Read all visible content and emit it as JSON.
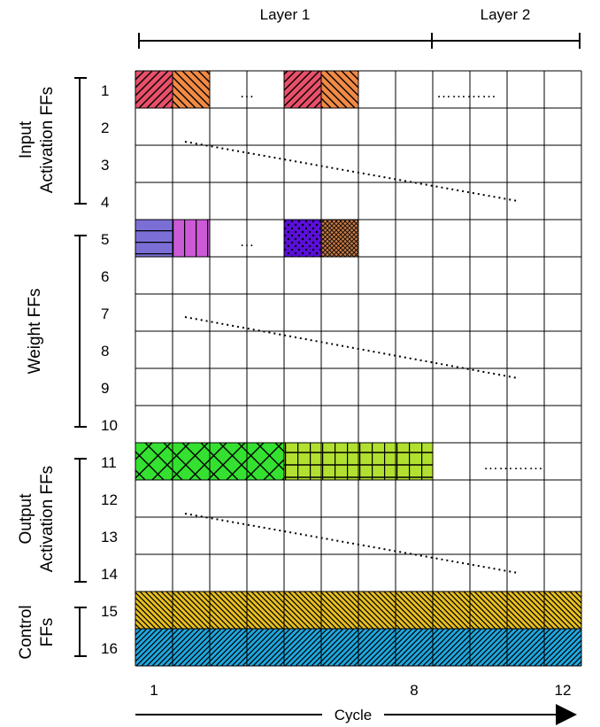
{
  "layers": {
    "layer1": "Layer 1",
    "layer2": "Layer 2"
  },
  "groups": {
    "input": {
      "line1": "Input",
      "line2": "Activation FFs"
    },
    "weight": {
      "line1": "Weight FFs"
    },
    "output": {
      "line1": "Output",
      "line2": "Activation FFs"
    },
    "control": {
      "line1": "Control",
      "line2": "FFs"
    }
  },
  "rows": [
    "1",
    "2",
    "3",
    "4",
    "5",
    "6",
    "7",
    "8",
    "9",
    "10",
    "11",
    "12",
    "13",
    "14",
    "15",
    "16"
  ],
  "ellipsis": {
    "short": "…",
    "long": "…………"
  },
  "cycle_ticks": {
    "first": "1",
    "mid": "8",
    "last": "12"
  },
  "axis_label": "Cycle",
  "colors": {
    "input_c1": "#e8506a",
    "input_c2": "#f08a45",
    "weight_c1": "#7b6fd6",
    "weight_c2": "#cc5ad6",
    "weight_c5": "#5a10d8",
    "weight_c6": "#c87a45",
    "output_l1": "#34e030",
    "output_l2": "#b2e030",
    "control_15": "#e8c020",
    "control_16": "#1ea8e0"
  }
}
